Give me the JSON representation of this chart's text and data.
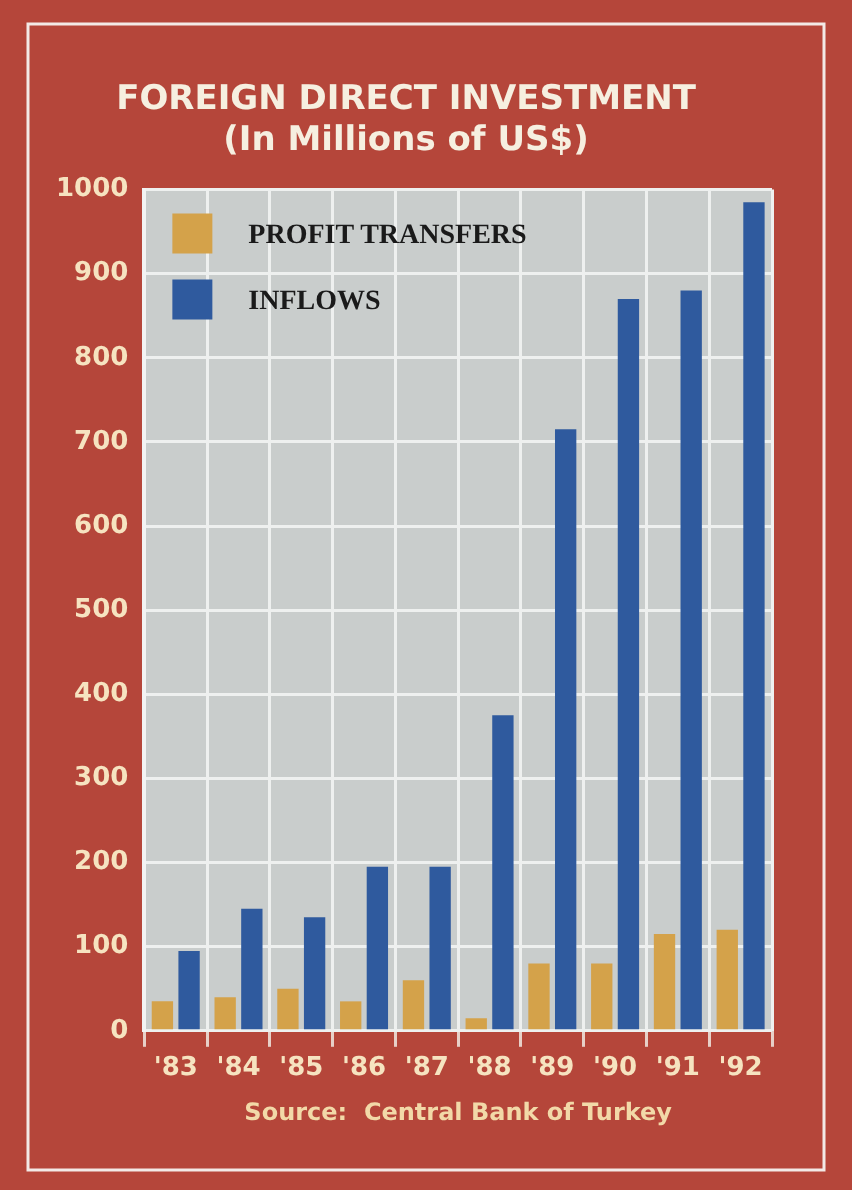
{
  "chart_data": {
    "type": "bar",
    "title": [
      "FOREIGN DIRECT INVESTMENT",
      "(In Millions of US$)"
    ],
    "categories": [
      "'83",
      "'84",
      "'85",
      "'86",
      "'87",
      "'88",
      "'89",
      "'90",
      "'91",
      "'92"
    ],
    "series": [
      {
        "name": "PROFIT TRANSFERS",
        "color": "#d4a24a",
        "values": [
          35,
          40,
          50,
          35,
          60,
          15,
          80,
          80,
          115,
          120
        ]
      },
      {
        "name": "INFLOWS",
        "color": "#2f5a9e",
        "values": [
          95,
          145,
          135,
          195,
          195,
          375,
          715,
          870,
          880,
          985
        ]
      }
    ],
    "ylim": [
      0,
      1000
    ],
    "yticks": [
      0,
      100,
      200,
      300,
      400,
      500,
      600,
      700,
      800,
      900,
      1000
    ],
    "grid": true,
    "legend": "top left",
    "annotations": [
      "Source:  Central Bank of Turkey"
    ]
  }
}
